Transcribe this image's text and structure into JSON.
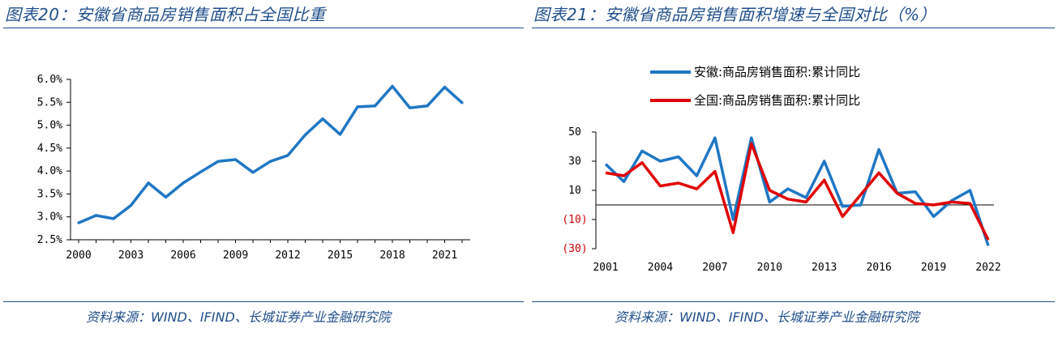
{
  "left": {
    "title": "图表20：安徽省商品房销售面积占全国比重",
    "source": "资料来源：WIND、IFIND、长城证券产业金融研究院"
  },
  "right": {
    "title": "图表21：安徽省商品房销售面积增速与全国对比（%）",
    "source": "资料来源：WIND、IFIND、长城证券产业金融研究院"
  },
  "colors": {
    "frame": "#1f4e8c",
    "anhui": "#1f77c4",
    "national": "#e00000",
    "negative_label": "#cc0000"
  },
  "chart_data": [
    {
      "type": "line",
      "x": [
        2000,
        2001,
        2002,
        2003,
        2004,
        2005,
        2006,
        2007,
        2008,
        2009,
        2010,
        2011,
        2012,
        2013,
        2014,
        2015,
        2016,
        2017,
        2018,
        2019,
        2020,
        2021,
        2022
      ],
      "series": [
        {
          "values": [
            2.87,
            3.03,
            2.96,
            3.25,
            3.74,
            3.43,
            3.74,
            3.98,
            4.21,
            4.25,
            3.97,
            4.21,
            4.34,
            4.79,
            5.14,
            4.8,
            5.4,
            5.42,
            5.85,
            5.38,
            5.42,
            5.83,
            5.49
          ]
        }
      ],
      "ylim": [
        2.5,
        6.0
      ],
      "yticks": [
        "2.5%",
        "3.0%",
        "3.5%",
        "4.0%",
        "4.5%",
        "5.0%",
        "5.5%",
        "6.0%"
      ],
      "xticks": [
        "2000",
        "2003",
        "2006",
        "2009",
        "2012",
        "2015",
        "2018",
        "2021"
      ],
      "grid": false
    },
    {
      "type": "line",
      "x": [
        2001,
        2002,
        2003,
        2004,
        2005,
        2006,
        2007,
        2008,
        2009,
        2010,
        2011,
        2012,
        2013,
        2014,
        2015,
        2016,
        2017,
        2018,
        2019,
        2020,
        2021,
        2022
      ],
      "series": [
        {
          "name": "安徽:商品房销售面积:累计同比",
          "values": [
            28,
            16,
            37,
            30,
            33,
            20,
            46,
            -10,
            46,
            2,
            11,
            5,
            30,
            -1,
            0,
            38,
            8,
            9,
            -8,
            3,
            10,
            -28
          ]
        },
        {
          "name": "全国:商品房销售面积:累计同比",
          "values": [
            22,
            20,
            29,
            13,
            15,
            11,
            23,
            -19,
            42,
            10,
            4,
            2,
            17,
            -8,
            7,
            22,
            8,
            1,
            0,
            2,
            1,
            -24
          ]
        }
      ],
      "ylim": [
        -30,
        50
      ],
      "yticks": [
        "50",
        "30",
        "10",
        "(10)",
        "(30)"
      ],
      "xticks": [
        "2001",
        "2004",
        "2007",
        "2010",
        "2013",
        "2016",
        "2019",
        "2022"
      ],
      "legend": "top-center",
      "grid": false
    }
  ]
}
